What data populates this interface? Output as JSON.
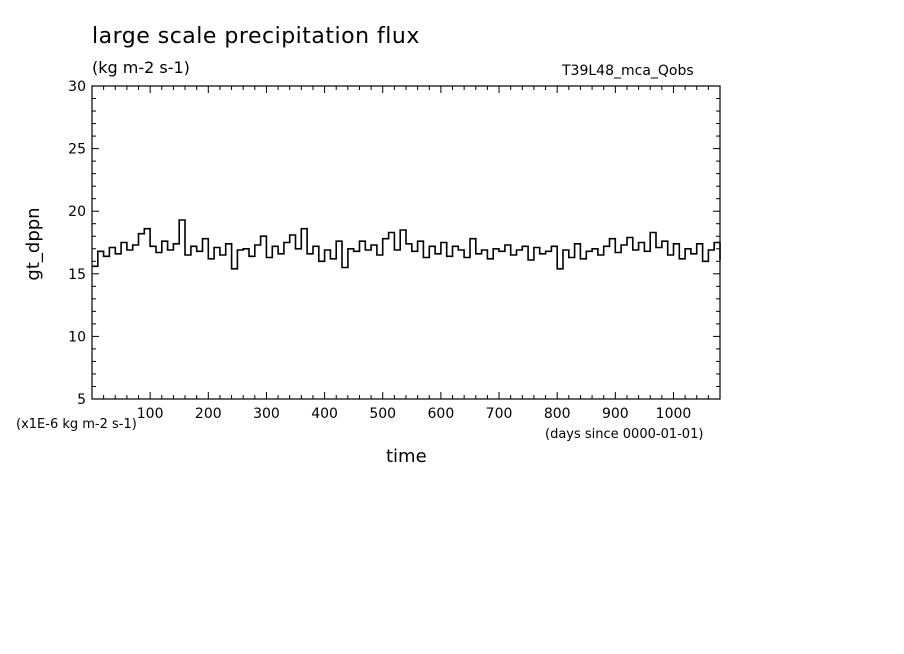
{
  "chart_data": {
    "type": "line",
    "title": "large scale precipitation flux",
    "subtitle": "(kg m-2 s-1)",
    "run_label": "T39L48_mca_Qobs",
    "ylabel": "gt_dppn",
    "xlabel": "time",
    "y_scale_note": "(x1E-6 kg m-2 s-1)",
    "x_units_note": "(days since 0000-01-01)",
    "xlim": [
      0,
      1080
    ],
    "ylim": [
      5,
      30
    ],
    "x_ticks": [
      100,
      200,
      300,
      400,
      500,
      600,
      700,
      800,
      900,
      1000
    ],
    "y_ticks": [
      5,
      10,
      15,
      20,
      25,
      30
    ],
    "grid": false,
    "line_color": "#000000",
    "series": [
      {
        "x": [
          0,
          10,
          20,
          30,
          40,
          50,
          60,
          70,
          80,
          90,
          100,
          110,
          120,
          130,
          140,
          150,
          160,
          170,
          180,
          190,
          200,
          210,
          220,
          230,
          240,
          250,
          260,
          270,
          280,
          290,
          300,
          310,
          320,
          330,
          340,
          350,
          360,
          370,
          380,
          390,
          400,
          410,
          420,
          430,
          440,
          450,
          460,
          470,
          480,
          490,
          500,
          510,
          520,
          530,
          540,
          550,
          560,
          570,
          580,
          590,
          600,
          610,
          620,
          630,
          640,
          650,
          660,
          670,
          680,
          690,
          700,
          710,
          720,
          730,
          740,
          750,
          760,
          770,
          780,
          790,
          800,
          810,
          820,
          830,
          840,
          850,
          860,
          870,
          880,
          890,
          900,
          910,
          920,
          930,
          940,
          950,
          960,
          970,
          980,
          990,
          1000,
          1010,
          1020,
          1030,
          1040,
          1050,
          1060,
          1070,
          1080
        ],
        "y": [
          15.6,
          16.8,
          16.4,
          17.1,
          16.6,
          17.5,
          16.9,
          17.3,
          18.2,
          18.6,
          17.2,
          16.7,
          17.6,
          16.9,
          17.4,
          19.3,
          16.5,
          17.2,
          16.8,
          17.8,
          16.2,
          17.1,
          16.5,
          17.4,
          15.4,
          16.9,
          17.0,
          16.4,
          17.3,
          18.0,
          16.3,
          17.2,
          16.6,
          17.5,
          18.1,
          17.0,
          18.6,
          16.6,
          17.2,
          16.0,
          16.9,
          16.2,
          17.6,
          15.5,
          17.0,
          16.8,
          17.6,
          16.9,
          17.3,
          16.5,
          17.8,
          18.3,
          16.9,
          18.5,
          17.4,
          16.8,
          17.6,
          16.3,
          17.2,
          16.6,
          17.5,
          16.4,
          17.2,
          16.9,
          16.3,
          17.8,
          16.6,
          16.9,
          16.2,
          17.0,
          16.8,
          17.3,
          16.5,
          16.9,
          17.2,
          16.1,
          17.1,
          16.6,
          16.8,
          17.2,
          15.4,
          16.9,
          16.3,
          17.4,
          16.2,
          16.8,
          17.0,
          16.5,
          17.2,
          17.8,
          16.7,
          17.3,
          17.9,
          16.9,
          17.5,
          16.8,
          18.3,
          17.1,
          17.6,
          16.5,
          17.4,
          16.2,
          17.0,
          16.6,
          17.4,
          16.0,
          16.9,
          17.5,
          16.1
        ]
      }
    ]
  }
}
